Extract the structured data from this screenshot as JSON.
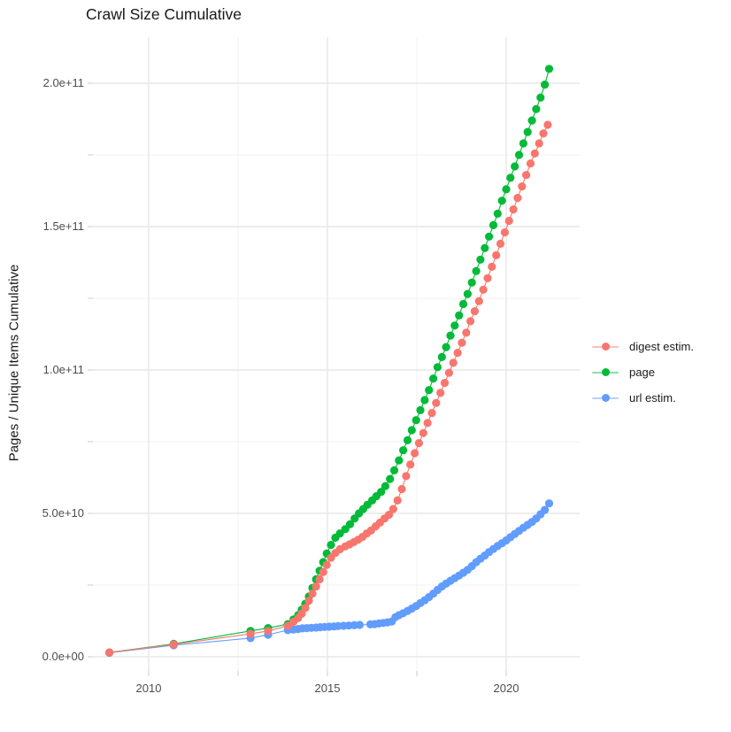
{
  "title": "Crawl Size Cumulative",
  "axes": {
    "y_title": "Pages / Unique Items Cumulative",
    "x_ticks": [
      "2010",
      "2015",
      "2020"
    ],
    "y_ticks": [
      "0.0e+00",
      "5.0e+10",
      "1.0e+11",
      "1.5e+11",
      "2.0e+11"
    ]
  },
  "legend": {
    "items": [
      {
        "label": "digest estim.",
        "color": "#F8766D"
      },
      {
        "label": "page",
        "color": "#00BA38"
      },
      {
        "label": "url estim.",
        "color": "#619CFF"
      }
    ]
  },
  "colors": {
    "background": "#ffffff",
    "grid_major": "#e7e7e7",
    "grid_minor": "#f1f1f1",
    "tick_mark": "#d4d4d4",
    "tick_text": "#4d4d4d",
    "text": "#191919"
  },
  "chart_data": {
    "type": "scatter",
    "title": "Crawl Size Cumulative",
    "xlabel": "",
    "ylabel": "Pages / Unique Items Cumulative",
    "y_unit": "1e9 (values below are billions of pages / unique items)",
    "x_range_years": [
      2008.4,
      2022.0
    ],
    "y_range": [
      -5000000000.0,
      217000000000.0
    ],
    "x_ticks_major": [
      2010,
      2015,
      2020
    ],
    "x_ticks_minor": [
      2012.5,
      2017.5
    ],
    "y_ticks_major": [
      0,
      50,
      100,
      150,
      200
    ],
    "y_ticks_minor": [
      25,
      75,
      125,
      175
    ],
    "grid": true,
    "legend_position": "right",
    "series": [
      {
        "name": "digest estim.",
        "color": "#F8766D",
        "points": [
          [
            2008.9,
            1.5
          ],
          [
            2010.7,
            4.3
          ],
          [
            2012.85,
            8.0
          ],
          [
            2013.34,
            9.0
          ],
          [
            2013.89,
            10.8
          ],
          [
            2014.05,
            12.2
          ],
          [
            2014.18,
            13.5
          ],
          [
            2014.28,
            15.0
          ],
          [
            2014.38,
            17.0
          ],
          [
            2014.48,
            19.5
          ],
          [
            2014.58,
            22.0
          ],
          [
            2014.68,
            24.5
          ],
          [
            2014.78,
            27.0
          ],
          [
            2014.88,
            29.5
          ],
          [
            2014.98,
            32.0
          ],
          [
            2015.1,
            34.5
          ],
          [
            2015.22,
            36.2
          ],
          [
            2015.35,
            37.5
          ],
          [
            2015.5,
            38.5
          ],
          [
            2015.62,
            39.2
          ],
          [
            2015.74,
            40.0
          ],
          [
            2015.86,
            40.8
          ],
          [
            2015.98,
            41.8
          ],
          [
            2016.1,
            43.0
          ],
          [
            2016.22,
            44.0
          ],
          [
            2016.35,
            45.5
          ],
          [
            2016.47,
            46.8
          ],
          [
            2016.6,
            48.2
          ],
          [
            2016.72,
            49.5
          ],
          [
            2016.84,
            51.5
          ],
          [
            2016.96,
            54.5
          ],
          [
            2017.08,
            58.5
          ],
          [
            2017.2,
            63.0
          ],
          [
            2017.32,
            67.0
          ],
          [
            2017.44,
            71.0
          ],
          [
            2017.56,
            74.5
          ],
          [
            2017.68,
            78.0
          ],
          [
            2017.8,
            81.5
          ],
          [
            2017.92,
            85.0
          ],
          [
            2018.04,
            88.5
          ],
          [
            2018.16,
            92.0
          ],
          [
            2018.28,
            95.5
          ],
          [
            2018.4,
            99.0
          ],
          [
            2018.52,
            102.5
          ],
          [
            2018.64,
            106.0
          ],
          [
            2018.76,
            109.5
          ],
          [
            2018.88,
            113.0
          ],
          [
            2019.0,
            117.0
          ],
          [
            2019.12,
            120.5
          ],
          [
            2019.24,
            124.0
          ],
          [
            2019.36,
            128.0
          ],
          [
            2019.48,
            132.0
          ],
          [
            2019.6,
            136.0
          ],
          [
            2019.72,
            140.0
          ],
          [
            2019.84,
            144.0
          ],
          [
            2019.96,
            148.0
          ],
          [
            2020.08,
            152.0
          ],
          [
            2020.2,
            156.0
          ],
          [
            2020.32,
            160.0
          ],
          [
            2020.44,
            164.0
          ],
          [
            2020.56,
            168.0
          ],
          [
            2020.68,
            172.0
          ],
          [
            2020.8,
            175.5
          ],
          [
            2020.92,
            179.0
          ],
          [
            2021.04,
            182.5
          ],
          [
            2021.16,
            185.5
          ]
        ]
      },
      {
        "name": "page",
        "color": "#00BA38",
        "points": [
          [
            2008.9,
            1.5
          ],
          [
            2010.7,
            4.5
          ],
          [
            2012.85,
            9.0
          ],
          [
            2013.34,
            10.0
          ],
          [
            2013.89,
            11.4
          ],
          [
            2014.05,
            13.0
          ],
          [
            2014.18,
            14.5
          ],
          [
            2014.28,
            16.4
          ],
          [
            2014.38,
            18.5
          ],
          [
            2014.48,
            21.0
          ],
          [
            2014.58,
            24.0
          ],
          [
            2014.68,
            27.0
          ],
          [
            2014.78,
            30.0
          ],
          [
            2014.88,
            33.0
          ],
          [
            2014.98,
            36.0
          ],
          [
            2015.1,
            39.0
          ],
          [
            2015.22,
            41.5
          ],
          [
            2015.35,
            43.0
          ],
          [
            2015.5,
            44.5
          ],
          [
            2015.63,
            46.2
          ],
          [
            2015.76,
            48.2
          ],
          [
            2015.88,
            50.0
          ],
          [
            2016.0,
            51.5
          ],
          [
            2016.12,
            53.0
          ],
          [
            2016.25,
            54.5
          ],
          [
            2016.37,
            56.0
          ],
          [
            2016.5,
            57.5
          ],
          [
            2016.62,
            59.5
          ],
          [
            2016.75,
            62.0
          ],
          [
            2016.87,
            65.0
          ],
          [
            2017.0,
            68.5
          ],
          [
            2017.12,
            72.0
          ],
          [
            2017.24,
            75.5
          ],
          [
            2017.36,
            79.0
          ],
          [
            2017.48,
            82.5
          ],
          [
            2017.6,
            86.0
          ],
          [
            2017.72,
            89.5
          ],
          [
            2017.84,
            93.0
          ],
          [
            2017.96,
            97.0
          ],
          [
            2018.08,
            101.0
          ],
          [
            2018.2,
            104.5
          ],
          [
            2018.32,
            108.0
          ],
          [
            2018.44,
            112.0
          ],
          [
            2018.56,
            115.5
          ],
          [
            2018.68,
            119.0
          ],
          [
            2018.8,
            123.0
          ],
          [
            2018.92,
            126.5
          ],
          [
            2019.04,
            130.5
          ],
          [
            2019.16,
            134.5
          ],
          [
            2019.28,
            138.5
          ],
          [
            2019.4,
            142.5
          ],
          [
            2019.52,
            146.5
          ],
          [
            2019.64,
            150.5
          ],
          [
            2019.76,
            154.5
          ],
          [
            2019.88,
            159.0
          ],
          [
            2020.0,
            163.0
          ],
          [
            2020.12,
            167.0
          ],
          [
            2020.24,
            171.0
          ],
          [
            2020.36,
            175.0
          ],
          [
            2020.48,
            179.0
          ],
          [
            2020.6,
            183.0
          ],
          [
            2020.72,
            187.0
          ],
          [
            2020.84,
            191.0
          ],
          [
            2020.96,
            195.0
          ],
          [
            2021.08,
            199.5
          ],
          [
            2021.2,
            205.0
          ]
        ]
      },
      {
        "name": "url estim.",
        "color": "#619CFF",
        "points": [
          [
            2008.9,
            1.4
          ],
          [
            2010.7,
            4.0
          ],
          [
            2012.85,
            6.5
          ],
          [
            2013.34,
            7.7
          ],
          [
            2013.89,
            9.3
          ],
          [
            2014.05,
            9.5
          ],
          [
            2014.18,
            9.7
          ],
          [
            2014.3,
            9.9
          ],
          [
            2014.42,
            10.0
          ],
          [
            2014.55,
            10.1
          ],
          [
            2014.68,
            10.2
          ],
          [
            2014.8,
            10.3
          ],
          [
            2014.92,
            10.4
          ],
          [
            2015.05,
            10.5
          ],
          [
            2015.18,
            10.6
          ],
          [
            2015.3,
            10.7
          ],
          [
            2015.45,
            10.8
          ],
          [
            2015.6,
            10.9
          ],
          [
            2015.75,
            11.0
          ],
          [
            2015.9,
            11.1
          ],
          [
            2016.2,
            11.3
          ],
          [
            2016.32,
            11.4
          ],
          [
            2016.44,
            11.6
          ],
          [
            2016.56,
            11.8
          ],
          [
            2016.68,
            12.0
          ],
          [
            2016.8,
            12.3
          ],
          [
            2016.9,
            13.8
          ],
          [
            2017.0,
            14.5
          ],
          [
            2017.12,
            15.2
          ],
          [
            2017.24,
            16.0
          ],
          [
            2017.36,
            16.8
          ],
          [
            2017.48,
            17.7
          ],
          [
            2017.6,
            18.7
          ],
          [
            2017.72,
            19.7
          ],
          [
            2017.84,
            20.8
          ],
          [
            2017.96,
            22.0
          ],
          [
            2018.08,
            23.3
          ],
          [
            2018.2,
            24.5
          ],
          [
            2018.32,
            25.5
          ],
          [
            2018.44,
            26.5
          ],
          [
            2018.56,
            27.4
          ],
          [
            2018.68,
            28.3
          ],
          [
            2018.8,
            29.3
          ],
          [
            2018.92,
            30.3
          ],
          [
            2019.04,
            31.6
          ],
          [
            2019.16,
            33.0
          ],
          [
            2019.28,
            34.2
          ],
          [
            2019.4,
            35.3
          ],
          [
            2019.52,
            36.5
          ],
          [
            2019.64,
            37.6
          ],
          [
            2019.76,
            38.6
          ],
          [
            2019.88,
            39.6
          ],
          [
            2020.0,
            40.6
          ],
          [
            2020.12,
            41.7
          ],
          [
            2020.24,
            42.8
          ],
          [
            2020.36,
            43.9
          ],
          [
            2020.48,
            45.0
          ],
          [
            2020.6,
            46.0
          ],
          [
            2020.72,
            47.0
          ],
          [
            2020.84,
            48.2
          ],
          [
            2020.96,
            49.7
          ],
          [
            2021.08,
            51.2
          ],
          [
            2021.2,
            53.5
          ]
        ]
      }
    ]
  }
}
